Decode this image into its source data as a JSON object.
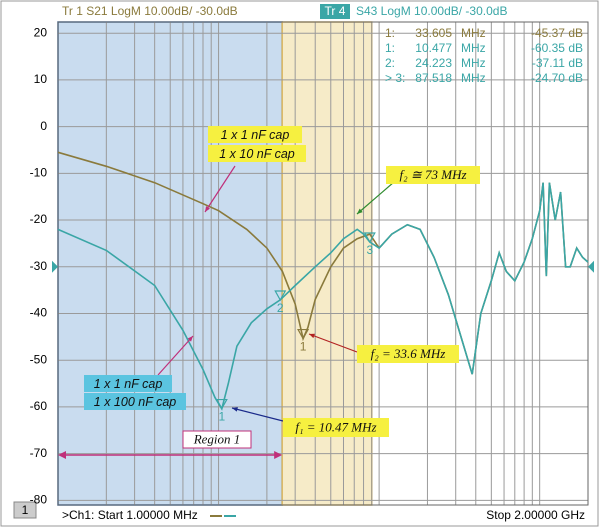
{
  "chart_data": {
    "type": "line",
    "header": {
      "trace1": "Tr 1  S21 LogM 10.00dB/  -30.0dB",
      "trace4_tag": "Tr 4",
      "trace4": "S43 LogM 10.00dB/  -30.0dB"
    },
    "footer": {
      "channel_tag": "1",
      "start": ">Ch1:  Start  1.00000 MHz",
      "stop": "Stop  2.00000 GHz"
    },
    "log_x": true,
    "grid": true,
    "xlim": [
      1,
      2000
    ],
    "ylim": [
      -81,
      22.4
    ],
    "yticks": [
      20,
      10,
      0,
      -10,
      -20,
      -30,
      -40,
      -50,
      -60,
      -70,
      -80
    ],
    "reference_level": -30,
    "shaded_regions": [
      {
        "x": [
          1,
          24.9
        ],
        "color": "#c9dcef",
        "border": "#3a6fb0"
      },
      {
        "x": [
          24.9,
          90
        ],
        "color": "#f6ebc8",
        "border": "#d9b560"
      }
    ],
    "series": [
      {
        "name": "S21",
        "color": "#8a7a3c",
        "x": [
          1,
          2,
          4,
          8,
          10,
          15,
          20,
          25,
          30,
          33.6,
          36,
          40,
          50,
          60,
          73,
          87.5,
          100,
          120,
          150,
          180,
          220,
          270,
          330,
          380,
          430,
          500,
          560,
          620,
          700,
          800,
          900,
          1000,
          1050,
          1100,
          1150,
          1250,
          1350,
          1450,
          1550,
          1700,
          1850,
          2000
        ],
        "values": [
          -5.5,
          -8.5,
          -12,
          -16.5,
          -18,
          -22,
          -26,
          -31,
          -38,
          -45.4,
          -43,
          -37,
          -30,
          -26,
          -24,
          -23,
          -26,
          -23,
          -21,
          -22,
          -28,
          -36,
          -46,
          -53,
          -40,
          -33,
          -27,
          -31,
          -33,
          -29,
          -24,
          -18,
          -12,
          -32,
          -12,
          -20,
          -14,
          -30,
          -30,
          -26,
          -28,
          -29
        ]
      },
      {
        "name": "S43",
        "color": "#3aa6a6",
        "x": [
          1,
          2,
          4,
          6,
          8,
          9.5,
          10.47,
          11.5,
          13,
          16,
          20,
          24.2,
          30,
          40,
          50,
          60,
          73,
          80,
          87.5,
          100,
          120,
          150,
          180,
          220,
          270,
          330,
          380,
          430,
          500,
          560,
          620,
          700,
          800,
          900,
          1000,
          1050,
          1100,
          1150,
          1250,
          1350,
          1450,
          1550,
          1700,
          1850,
          2000
        ],
        "values": [
          -22,
          -26.5,
          -34,
          -43.6,
          -52,
          -58,
          -60.4,
          -55,
          -47,
          -42,
          -39,
          -37.1,
          -34,
          -30,
          -27,
          -24,
          -22,
          -23,
          -24.7,
          -26,
          -23,
          -21,
          -22,
          -28,
          -36,
          -46,
          -53,
          -40,
          -33,
          -27,
          -31,
          -33,
          -29,
          -24,
          -18,
          -12,
          -32,
          -12,
          -20,
          -14,
          -30,
          -30,
          -26,
          -28,
          -29
        ]
      }
    ],
    "markers": [
      {
        "series": 0,
        "id": "1",
        "label": "1:",
        "x": 33.605,
        "x_label": "33.605",
        "unit": "MHz",
        "y": -45.37,
        "y_label": "-45.37 dB"
      },
      {
        "series": 1,
        "id": "1",
        "label": "1:",
        "x": 10.477,
        "x_label": "10.477",
        "unit": "MHz",
        "y": -60.35,
        "y_label": "-60.35 dB"
      },
      {
        "series": 1,
        "id": "2",
        "label": "2:",
        "x": 24.223,
        "x_label": "24.223",
        "unit": "MHz",
        "y": -37.11,
        "y_label": "-37.11 dB"
      },
      {
        "series": 1,
        "id": "3",
        "label": "> 3:",
        "x": 87.518,
        "x_label": "87.518",
        "unit": "MHz",
        "y": -24.7,
        "y_label": "-24.70 dB"
      }
    ],
    "annotations": [
      "1 x 1 nF cap",
      "1 x 10 nF cap",
      "f₂ ≅ 73 MHz",
      "f₂ = 33.6 MHz",
      "1 x 1 nF cap",
      "1 x 100 nF cap",
      "f₁ = 10.47 MHz",
      "Region 1"
    ]
  }
}
